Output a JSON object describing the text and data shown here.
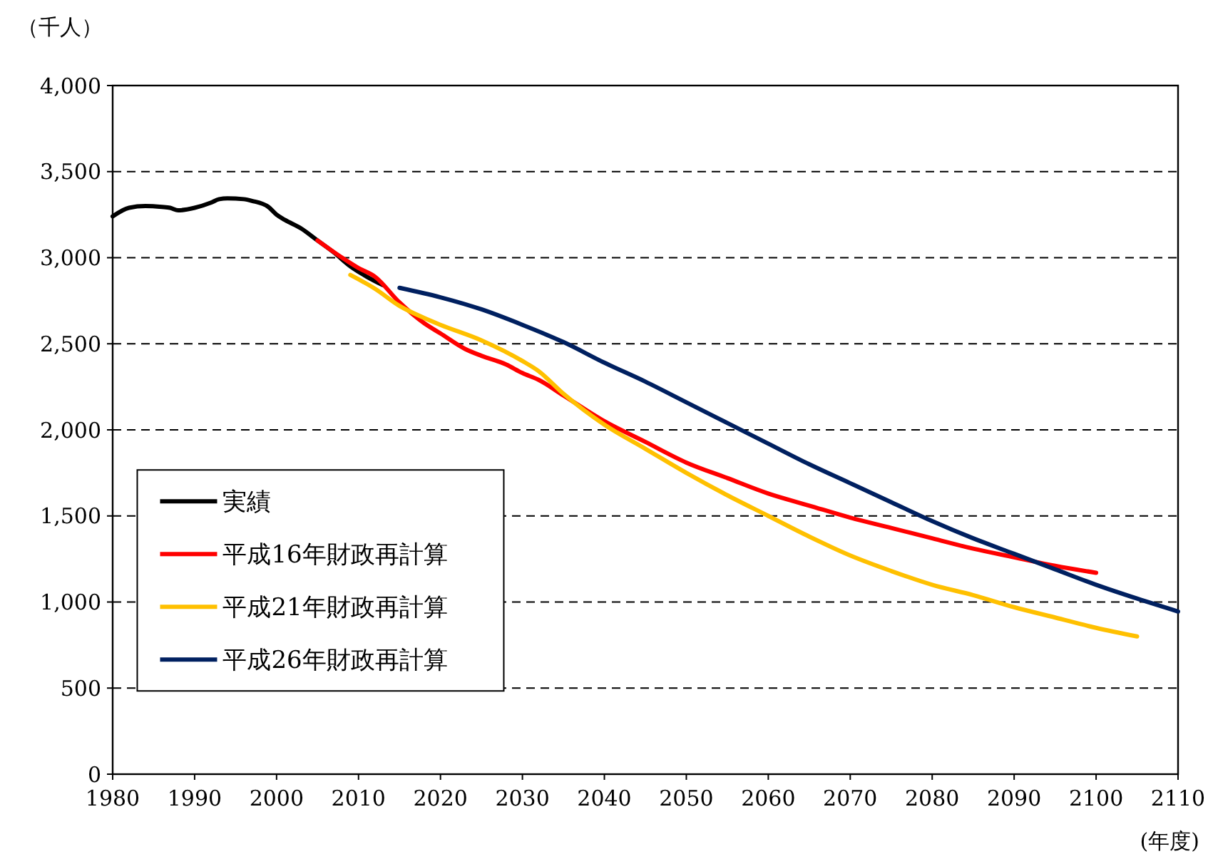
{
  "chart_data": {
    "type": "line",
    "ylabel": "（千人）",
    "xlabel": "(年度)",
    "xlim": [
      1980,
      2110
    ],
    "xticks": [
      1980,
      1990,
      2000,
      2010,
      2020,
      2030,
      2040,
      2050,
      2060,
      2070,
      2080,
      2090,
      2100,
      2110
    ],
    "ylim": [
      0,
      4000
    ],
    "yticks": [
      0,
      {
        "value": 500,
        "label": "500"
      },
      {
        "value": 1000,
        "label": "1,000"
      },
      {
        "value": 1500,
        "label": "1,500"
      },
      {
        "value": 2000,
        "label": "2,000"
      },
      {
        "value": 2500,
        "label": "2,500"
      },
      {
        "value": 3000,
        "label": "3,000"
      },
      {
        "value": 3500,
        "label": "3,500"
      },
      {
        "value": 4000,
        "label": "4,000"
      }
    ],
    "grid": "y",
    "legend": "bottom left",
    "marker": "none",
    "line_style": "solid",
    "series": [
      {
        "name": "実績",
        "color": "#000000",
        "x": [
          1980,
          1982,
          1984,
          1986,
          1987,
          1988,
          1990,
          1992,
          1993,
          1994,
          1996,
          1997,
          1999,
          2000,
          2001,
          2003,
          2005,
          2007,
          2009,
          2011,
          2013
        ],
        "values": [
          3240,
          3290,
          3300,
          3295,
          3290,
          3275,
          3290,
          3320,
          3340,
          3345,
          3340,
          3330,
          3295,
          3250,
          3220,
          3170,
          3100,
          3030,
          2950,
          2890,
          2840
        ]
      },
      {
        "name": "平成16年財政再計算",
        "color": "#ff0000",
        "x": [
          2005,
          2008,
          2010,
          2012,
          2015,
          2018,
          2020,
          2023,
          2025,
          2028,
          2030,
          2032,
          2035,
          2040,
          2045,
          2050,
          2055,
          2060,
          2065,
          2070,
          2075,
          2080,
          2085,
          2090,
          2095,
          2100
        ],
        "values": [
          3100,
          3000,
          2940,
          2890,
          2740,
          2620,
          2560,
          2470,
          2430,
          2380,
          2330,
          2290,
          2200,
          2050,
          1930,
          1810,
          1720,
          1630,
          1560,
          1490,
          1430,
          1370,
          1310,
          1260,
          1210,
          1170
        ]
      },
      {
        "name": "平成21年財政再計算",
        "color": "#ffc000",
        "x": [
          2009,
          2012,
          2015,
          2018,
          2020,
          2025,
          2030,
          2032,
          2035,
          2040,
          2045,
          2050,
          2055,
          2060,
          2065,
          2070,
          2075,
          2080,
          2085,
          2090,
          2095,
          2100,
          2105
        ],
        "values": [
          2900,
          2820,
          2720,
          2650,
          2610,
          2520,
          2400,
          2340,
          2210,
          2030,
          1890,
          1750,
          1620,
          1500,
          1380,
          1270,
          1180,
          1100,
          1040,
          970,
          910,
          850,
          800
        ]
      },
      {
        "name": "平成26年財政再計算",
        "color": "#002060",
        "x": [
          2015,
          2020,
          2025,
          2030,
          2035,
          2040,
          2045,
          2050,
          2055,
          2060,
          2065,
          2070,
          2075,
          2080,
          2085,
          2090,
          2095,
          2100,
          2105,
          2110
        ],
        "values": [
          2825,
          2770,
          2700,
          2610,
          2510,
          2390,
          2280,
          2160,
          2040,
          1920,
          1800,
          1690,
          1580,
          1470,
          1370,
          1280,
          1190,
          1100,
          1020,
          945
        ]
      }
    ]
  }
}
